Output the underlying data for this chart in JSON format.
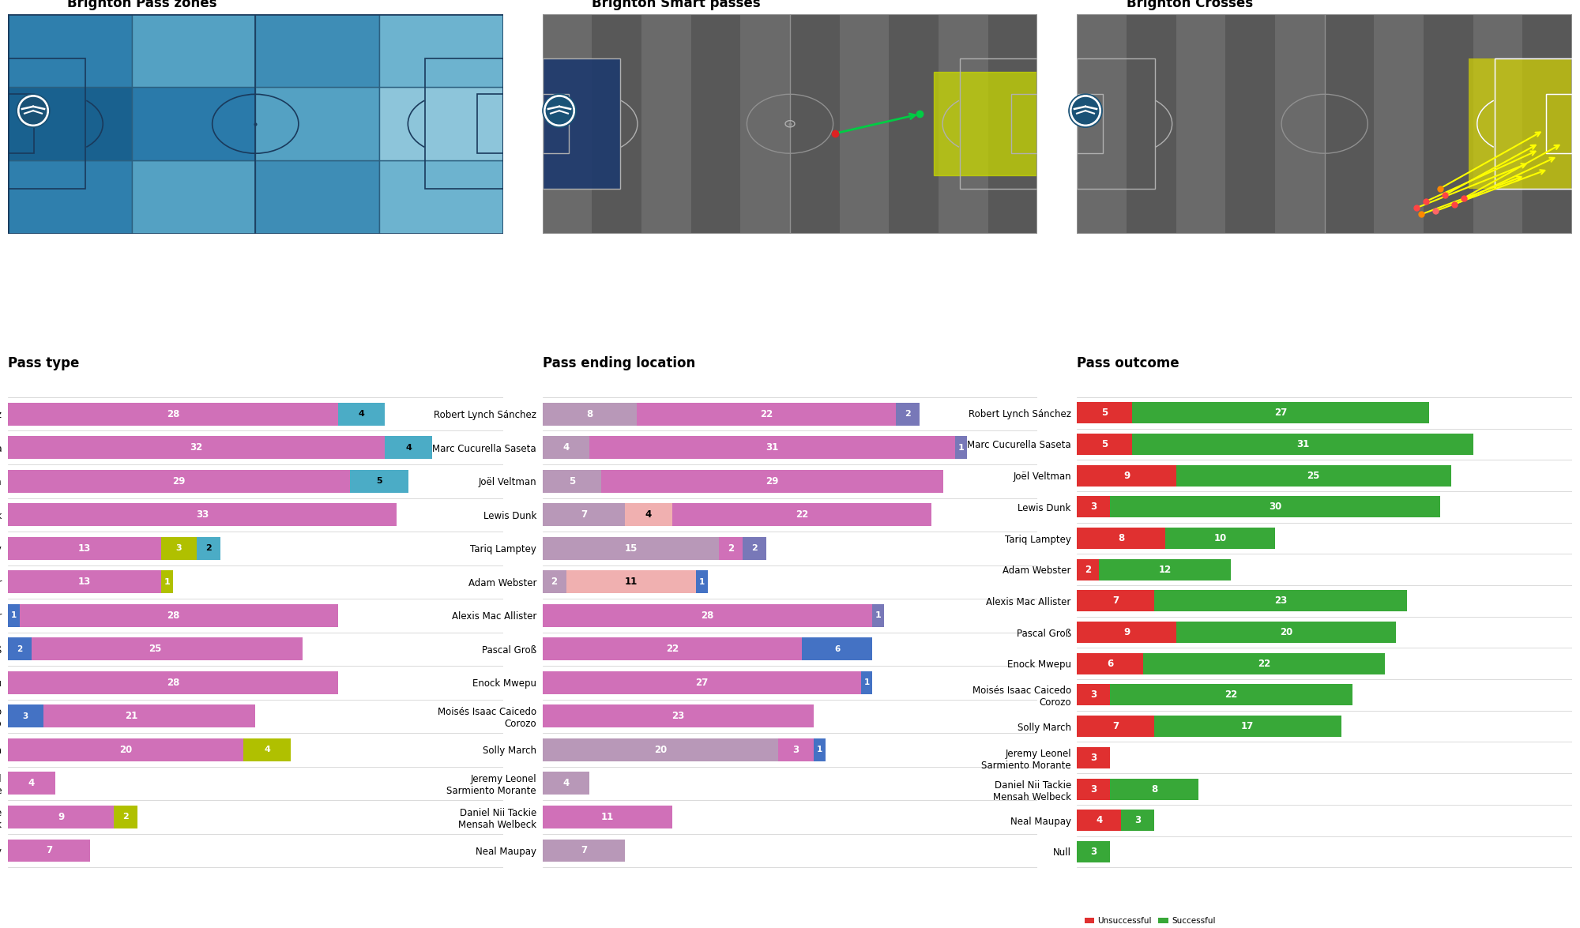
{
  "background_color": "#ffffff",
  "pass_type_players": [
    "Robert Lynch Sánchez",
    "Marc Cucurella Saseta",
    "Joël Veltman",
    "Lewis Dunk",
    "Tariq Lamptey",
    "Adam Webster",
    "Alexis Mac Allister",
    "Pascal Groß",
    "Enock Mwepu",
    "Moisés Isaac Caicedo\nCorozo",
    "Solly March",
    "Jeremy Leonel\nSarmiento Morante",
    "Daniel Nii Tackie\nMensah Welbeck",
    "Neal Maupay"
  ],
  "pass_type_simple": [
    28,
    32,
    29,
    33,
    13,
    13,
    28,
    25,
    28,
    21,
    20,
    4,
    9,
    7
  ],
  "pass_type_smart": [
    0,
    0,
    0,
    0,
    0,
    0,
    1,
    2,
    0,
    3,
    0,
    0,
    0,
    0
  ],
  "pass_type_head": [
    0,
    0,
    0,
    0,
    3,
    1,
    0,
    0,
    0,
    0,
    4,
    0,
    2,
    0
  ],
  "pass_type_cross": [
    4,
    4,
    5,
    0,
    2,
    0,
    0,
    0,
    0,
    0,
    0,
    0,
    0,
    0
  ],
  "pass_end_players": [
    "Robert Lynch Sánchez",
    "Marc Cucurella Saseta",
    "Joël Veltman",
    "Lewis Dunk",
    "Tariq Lamptey",
    "Adam Webster",
    "Alexis Mac Allister",
    "Pascal Groß",
    "Enock Mwepu",
    "Moisés Isaac Caicedo\nCorozo",
    "Solly March",
    "Jeremy Leonel\nSarmiento Morante",
    "Daniel Nii Tackie\nMensah Welbeck",
    "Neal Maupay"
  ],
  "pass_end_own18": [
    8,
    4,
    5,
    7,
    15,
    2,
    0,
    0,
    0,
    0,
    20,
    4,
    0,
    7
  ],
  "pass_end_own6": [
    0,
    0,
    0,
    4,
    0,
    11,
    0,
    0,
    0,
    0,
    0,
    0,
    0,
    0
  ],
  "pass_end_opp6": [
    0,
    0,
    0,
    0,
    0,
    1,
    0,
    6,
    1,
    0,
    1,
    0,
    0,
    0
  ],
  "pass_end_outside": [
    22,
    31,
    29,
    22,
    2,
    0,
    28,
    22,
    27,
    23,
    3,
    0,
    11,
    0
  ],
  "pass_end_opp18": [
    2,
    1,
    0,
    0,
    2,
    0,
    1,
    0,
    0,
    0,
    0,
    0,
    0,
    0
  ],
  "pass_outcome_players": [
    "Robert Lynch Sánchez",
    "Marc Cucurella Saseta",
    "Joël Veltman",
    "Lewis Dunk",
    "Tariq Lamptey",
    "Adam Webster",
    "Alexis Mac Allister",
    "Pascal Groß",
    "Enock Mwepu",
    "Moisés Isaac Caicedo\nCorozo",
    "Solly March",
    "Jeremy Leonel\nSarmiento Morante",
    "Daniel Nii Tackie\nMensah Welbeck",
    "Neal Maupay",
    "Null"
  ],
  "pass_outcome_unsuccessful": [
    5,
    5,
    9,
    3,
    8,
    2,
    7,
    9,
    6,
    3,
    7,
    3,
    3,
    4,
    0
  ],
  "pass_outcome_successful": [
    27,
    31,
    25,
    30,
    10,
    12,
    23,
    20,
    22,
    22,
    17,
    0,
    8,
    3,
    3
  ],
  "heatmap": [
    [
      0.62,
      0.38,
      0.52,
      0.28
    ],
    [
      0.85,
      0.65,
      0.38,
      0.18
    ],
    [
      0.62,
      0.38,
      0.52,
      0.28
    ]
  ],
  "colors": {
    "simple_pass": "#d070b8",
    "smart_pass": "#4472c4",
    "head_pass": "#b0c000",
    "hand_pass": "#70ad47",
    "cross": "#4bacc6",
    "own18_box": "#b898b8",
    "own6_box": "#f0b0b0",
    "opp6_box": "#4472c4",
    "outside_box": "#d070b8",
    "opp18_box": "#7878b8",
    "unsuccessful": "#e03030",
    "successful": "#38a838"
  }
}
